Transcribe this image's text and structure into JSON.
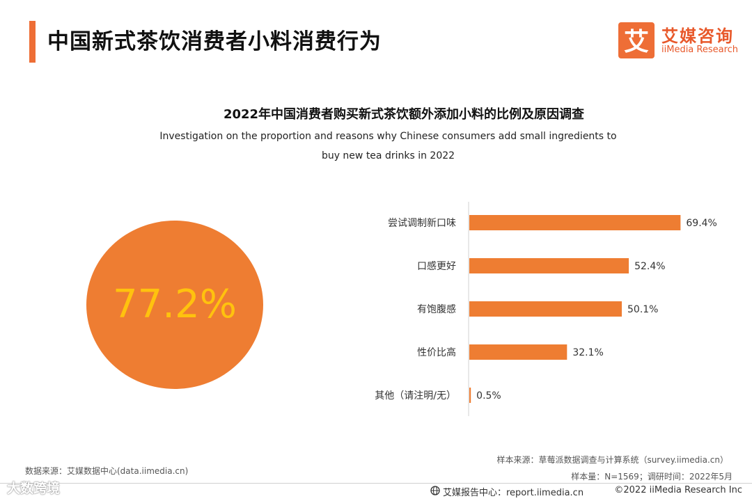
{
  "header": {
    "title": "中国新式茶饮消费者小料消费行为",
    "logo_cn": "艾媒咨询",
    "logo_en": "iiMedia Research",
    "logo_mark": "艾"
  },
  "chart_title": "2022年中国消费者购买新式茶饮额外添加小料的比例及原因调查",
  "chart_subtitle_line1": "Investigation on the proportion and reasons why Chinese consumers add small ingredients to",
  "chart_subtitle_line2": "buy new tea drinks in 2022",
  "highlight": {
    "value": "77.2%"
  },
  "colors": {
    "accent": "#ee6e36",
    "bar": "#ee7d32",
    "circle": "#ee7d32",
    "circle_text": "#ffc20e"
  },
  "chart_data": {
    "type": "bar",
    "orientation": "horizontal",
    "categories": [
      "尝试调制新口味",
      "口感更好",
      "有饱腹感",
      "性价比高",
      "其他（请注明/无）"
    ],
    "values": [
      69.4,
      52.4,
      50.1,
      32.1,
      0.5
    ],
    "value_labels": [
      "69.4%",
      "52.4%",
      "50.1%",
      "32.1%",
      "0.5%"
    ],
    "xlim": [
      0,
      70
    ]
  },
  "footer": {
    "source_data": "数据来源：艾媒数据中心(data.iimedia.cn)",
    "sample_source": "样本来源：草莓派数据调查与计算系统（survey.iimedia.cn）",
    "sample_info": "样本量：N=1569；调研时间：2022年5月",
    "report_center": "艾媒报告中心：report.iimedia.cn",
    "copyright": "©2022  iiMedia Research  Inc",
    "watermark": "大数跨境"
  }
}
